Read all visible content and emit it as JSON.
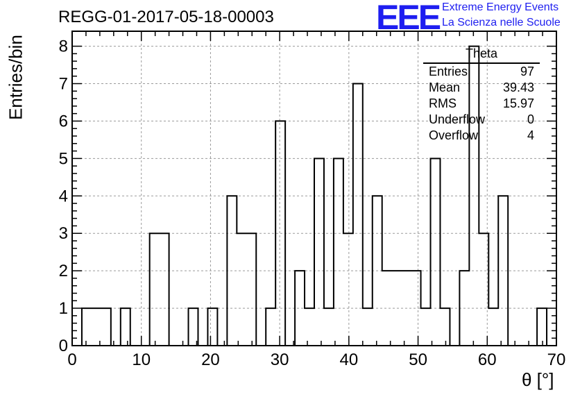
{
  "title": "REGG-01-2017-05-18-00003",
  "logo": {
    "mark": "EEE",
    "line1": "Extreme Energy Events",
    "line2": "La Scienza nelle Scuole",
    "color": "#1e1ef0"
  },
  "stats": {
    "name": "Theta",
    "rows": [
      {
        "label": "Entries",
        "value": "97"
      },
      {
        "label": "Mean",
        "value": "39.43"
      },
      {
        "label": "RMS",
        "value": "15.97"
      },
      {
        "label": "Underflow",
        "value": "0"
      },
      {
        "label": "Overflow",
        "value": "4"
      }
    ]
  },
  "chart_data": {
    "type": "histogram",
    "xlabel": "θ [°]",
    "ylabel": "Entries/bin",
    "xlim": [
      0,
      70
    ],
    "ylim": [
      0,
      8.4
    ],
    "grid": true,
    "x_ticks": [
      0,
      10,
      20,
      30,
      40,
      50,
      60,
      70
    ],
    "y_ticks": [
      0,
      1,
      2,
      3,
      4,
      5,
      6,
      7,
      8
    ],
    "bin_edges": [
      1.4,
      2.8,
      4.2,
      5.6,
      7.0,
      8.4,
      9.8,
      11.2,
      12.6,
      14.0,
      15.4,
      16.8,
      18.2,
      19.6,
      21.0,
      22.4,
      23.8,
      25.2,
      26.6,
      28.0,
      29.4,
      30.8,
      32.2,
      33.6,
      35.0,
      36.4,
      37.8,
      39.2,
      40.6,
      42.0,
      43.4,
      44.8,
      46.2,
      47.6,
      49.0,
      50.4,
      51.8,
      53.2,
      54.6,
      56.0,
      57.4,
      58.8,
      60.2,
      61.6,
      63.0,
      64.4,
      65.8,
      67.2,
      68.6
    ],
    "values": [
      1,
      1,
      1,
      0,
      1,
      0,
      0,
      3,
      3,
      0,
      0,
      1,
      0,
      1,
      0,
      4,
      3,
      3,
      0,
      1,
      6,
      0,
      2,
      1,
      5,
      1,
      5,
      3,
      7,
      1,
      4,
      2,
      2,
      2,
      2,
      1,
      5,
      1,
      0,
      2,
      8,
      3,
      1,
      4,
      0,
      0,
      0,
      1
    ],
    "line_color": "#000000"
  }
}
